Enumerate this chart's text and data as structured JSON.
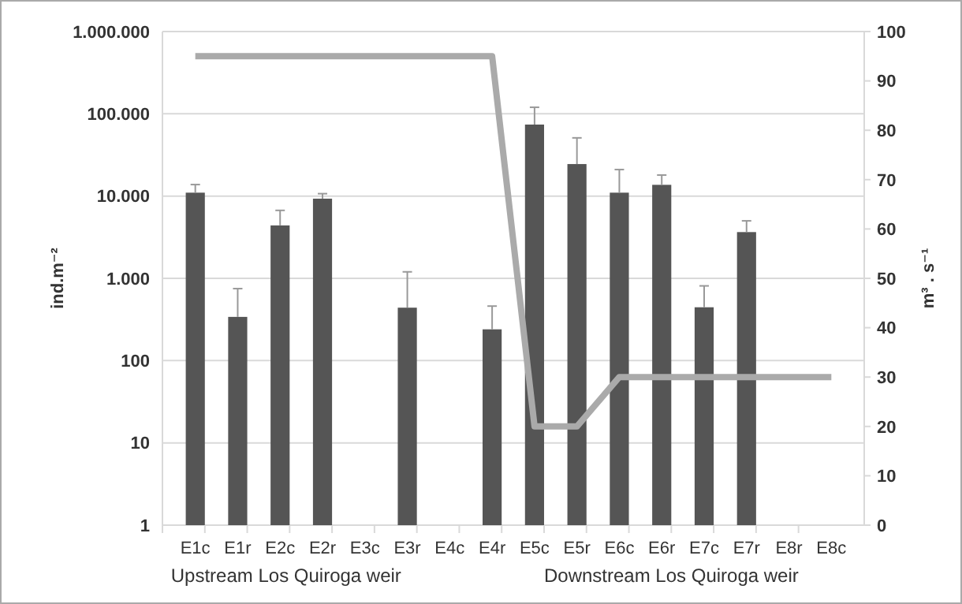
{
  "chart_data": {
    "type": "bar",
    "ylabel": "ind.m⁻²",
    "y2label": "m³ . s⁻¹",
    "categories": [
      "E1c",
      "E1r",
      "E2c",
      "E2r",
      "E3c",
      "E3r",
      "E4c",
      "E4r",
      "E5c",
      "E5r",
      "E6c",
      "E6r",
      "E7c",
      "E7r",
      "E8r",
      "E8c"
    ],
    "series": [
      {
        "color": "#555555",
        "values": [
          11000,
          340,
          4400,
          9300,
          null,
          440,
          null,
          240,
          74000,
          24500,
          11000,
          13700,
          445,
          3650,
          null,
          null
        ],
        "errors": [
          [
            11000,
            13800
          ],
          [
            340,
            750
          ],
          [
            4400,
            6700
          ],
          [
            9300,
            10700
          ],
          null,
          [
            440,
            1200
          ],
          null,
          [
            240,
            460
          ],
          [
            74000,
            120000
          ],
          [
            24500,
            51000
          ],
          [
            11000,
            21000
          ],
          [
            13700,
            18000
          ],
          [
            445,
            810
          ],
          [
            3650,
            5000
          ],
          null,
          null
        ]
      },
      {
        "type": "line",
        "axis": "y2",
        "color": "#aaaaaa",
        "values": [
          95,
          95,
          95,
          95,
          95,
          95,
          95,
          95,
          20,
          20,
          30,
          30,
          30,
          30,
          30,
          30
        ]
      }
    ],
    "log": "y",
    "ylim": [
      1,
      1000000
    ],
    "yticks": [
      {
        "value": 1,
        "label": "1"
      },
      {
        "value": 10,
        "label": "10"
      },
      {
        "value": 100,
        "label": "100"
      },
      {
        "value": 1000,
        "label": "1.000"
      },
      {
        "value": 10000,
        "label": "10.000"
      },
      {
        "value": 100000,
        "label": "100.000"
      },
      {
        "value": 1000000,
        "label": "1.000.000"
      }
    ],
    "y2lim": [
      0,
      100
    ],
    "y2ticks": [
      0,
      10,
      20,
      30,
      40,
      50,
      60,
      70,
      80,
      90,
      100
    ],
    "grid": "y",
    "annotations": [
      "Upstream Los Quiroga weir",
      "Downstream Los Quiroga weir"
    ]
  }
}
